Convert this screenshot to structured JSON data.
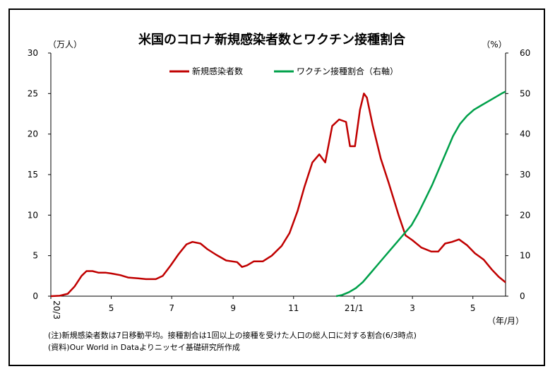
{
  "chart_data": {
    "type": "line",
    "title": "米国のコロナ新規感染者数とワクチン接種割合",
    "ylabel_left": "（万人）",
    "ylabel_right": "（%）",
    "xlabel": "（年/月）",
    "ylim_left": [
      0,
      30
    ],
    "ylim_right": [
      0,
      60
    ],
    "yticks_left": [
      "0",
      "5",
      "10",
      "15",
      "20",
      "25",
      "30"
    ],
    "yticks_right": [
      "0",
      "10",
      "20",
      "30",
      "40",
      "50",
      "60"
    ],
    "xlim": [
      "2020-03-01",
      "2021-06-03"
    ],
    "xticks": [
      {
        "label": "20/3",
        "date": "2020-03-01"
      },
      {
        "label": "5",
        "date": "2020-05-01"
      },
      {
        "label": "7",
        "date": "2020-07-01"
      },
      {
        "label": "9",
        "date": "2020-09-01"
      },
      {
        "label": "11",
        "date": "2020-11-01"
      },
      {
        "label": "21/1",
        "date": "2021-01-01"
      },
      {
        "label": "3",
        "date": "2021-03-01"
      },
      {
        "label": "5",
        "date": "2021-05-01"
      }
    ],
    "grid": false,
    "legend_position": "top-center",
    "series": [
      {
        "name": "新規感染者数",
        "axis": "left",
        "color": "#c00000",
        "points": [
          [
            "2020-03-01",
            0
          ],
          [
            "2020-03-10",
            0.05
          ],
          [
            "2020-03-18",
            0.3
          ],
          [
            "2020-03-25",
            1.2
          ],
          [
            "2020-04-01",
            2.5
          ],
          [
            "2020-04-06",
            3.1
          ],
          [
            "2020-04-12",
            3.1
          ],
          [
            "2020-04-18",
            2.9
          ],
          [
            "2020-04-25",
            2.9
          ],
          [
            "2020-05-01",
            2.8
          ],
          [
            "2020-05-10",
            2.6
          ],
          [
            "2020-05-18",
            2.3
          ],
          [
            "2020-05-28",
            2.2
          ],
          [
            "2020-06-05",
            2.1
          ],
          [
            "2020-06-15",
            2.1
          ],
          [
            "2020-06-22",
            2.5
          ],
          [
            "2020-06-30",
            3.8
          ],
          [
            "2020-07-08",
            5.2
          ],
          [
            "2020-07-16",
            6.4
          ],
          [
            "2020-07-22",
            6.7
          ],
          [
            "2020-07-30",
            6.5
          ],
          [
            "2020-08-06",
            5.8
          ],
          [
            "2020-08-15",
            5.1
          ],
          [
            "2020-08-25",
            4.4
          ],
          [
            "2020-09-05",
            4.2
          ],
          [
            "2020-09-10",
            3.6
          ],
          [
            "2020-09-15",
            3.8
          ],
          [
            "2020-09-22",
            4.3
          ],
          [
            "2020-10-01",
            4.3
          ],
          [
            "2020-10-10",
            5.0
          ],
          [
            "2020-10-20",
            6.2
          ],
          [
            "2020-10-28",
            7.8
          ],
          [
            "2020-11-05",
            10.5
          ],
          [
            "2020-11-12",
            13.5
          ],
          [
            "2020-11-20",
            16.5
          ],
          [
            "2020-11-27",
            17.5
          ],
          [
            "2020-12-03",
            16.5
          ],
          [
            "2020-12-10",
            21.0
          ],
          [
            "2020-12-17",
            21.8
          ],
          [
            "2020-12-24",
            21.5
          ],
          [
            "2020-12-28",
            18.5
          ],
          [
            "2021-01-02",
            18.5
          ],
          [
            "2021-01-07",
            23.0
          ],
          [
            "2021-01-11",
            25.0
          ],
          [
            "2021-01-14",
            24.5
          ],
          [
            "2021-01-20",
            21.0
          ],
          [
            "2021-01-28",
            17.0
          ],
          [
            "2021-02-05",
            14.0
          ],
          [
            "2021-02-15",
            10.0
          ],
          [
            "2021-02-22",
            7.5
          ],
          [
            "2021-03-01",
            6.9
          ],
          [
            "2021-03-10",
            6.0
          ],
          [
            "2021-03-20",
            5.5
          ],
          [
            "2021-03-27",
            5.5
          ],
          [
            "2021-04-03",
            6.5
          ],
          [
            "2021-04-10",
            6.7
          ],
          [
            "2021-04-17",
            7.0
          ],
          [
            "2021-04-25",
            6.3
          ],
          [
            "2021-05-03",
            5.3
          ],
          [
            "2021-05-12",
            4.5
          ],
          [
            "2021-05-20",
            3.3
          ],
          [
            "2021-05-27",
            2.4
          ],
          [
            "2021-06-03",
            1.7
          ]
        ]
      },
      {
        "name": "ワクチン接種割合（右軸）",
        "axis": "right",
        "color": "#00a04a",
        "points": [
          [
            "2020-12-14",
            0
          ],
          [
            "2020-12-20",
            0.3
          ],
          [
            "2020-12-27",
            1
          ],
          [
            "2021-01-03",
            2
          ],
          [
            "2021-01-10",
            3.5
          ],
          [
            "2021-01-17",
            5.5
          ],
          [
            "2021-01-24",
            7.5
          ],
          [
            "2021-01-31",
            9.5
          ],
          [
            "2021-02-07",
            11.5
          ],
          [
            "2021-02-14",
            13.5
          ],
          [
            "2021-02-21",
            15.5
          ],
          [
            "2021-02-28",
            17.5
          ],
          [
            "2021-03-07",
            20.5
          ],
          [
            "2021-03-14",
            24
          ],
          [
            "2021-03-21",
            27.5
          ],
          [
            "2021-03-28",
            31.5
          ],
          [
            "2021-04-04",
            35.5
          ],
          [
            "2021-04-11",
            39.5
          ],
          [
            "2021-04-18",
            42.5
          ],
          [
            "2021-04-25",
            44.5
          ],
          [
            "2021-05-02",
            46
          ],
          [
            "2021-05-09",
            47
          ],
          [
            "2021-05-16",
            48
          ],
          [
            "2021-05-23",
            49
          ],
          [
            "2021-05-30",
            50
          ],
          [
            "2021-06-03",
            50.5
          ]
        ]
      }
    ]
  },
  "footer": {
    "note": "(注)新規感染者数は7日移動平均。接種割合は1回以上の接種を受けた人口の総人口に対する割合(6/3時点)",
    "source": "(資料)Our World in Dataよりニッセイ基礎研究所作成"
  }
}
